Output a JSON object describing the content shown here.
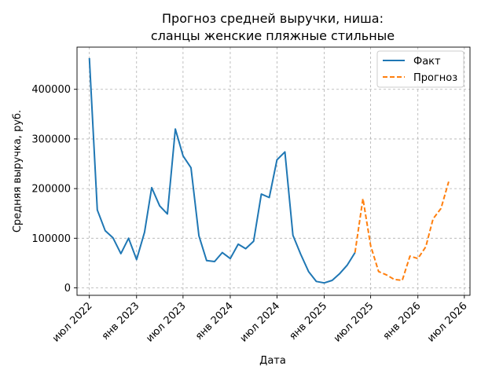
{
  "chart_data": {
    "type": "line",
    "title": "Прогноз средней выручки, ниша:",
    "subtitle": "сланцы женские пляжные стильные",
    "xlabel": "Дата",
    "ylabel": "Средняя выручка, руб.",
    "ylim": [
      -15000,
      485000
    ],
    "xlim": [
      "2022-05-14",
      "2026-07-23"
    ],
    "yticks": [
      0,
      100000,
      200000,
      300000,
      400000
    ],
    "ytick_labels": [
      "0",
      "100000",
      "200000",
      "300000",
      "400000"
    ],
    "xticks": [
      "2022-07-01",
      "2023-01-01",
      "2023-07-01",
      "2024-01-01",
      "2024-07-01",
      "2025-01-01",
      "2025-07-01",
      "2026-01-01",
      "2026-07-01"
    ],
    "xtick_labels": [
      "июл 2022",
      "янв 2023",
      "июл 2023",
      "янв 2024",
      "июл 2024",
      "янв 2025",
      "июл 2025",
      "янв 2026",
      "июл 2026"
    ],
    "grid": true,
    "legend_position": "top-right",
    "series": [
      {
        "name": "Факт",
        "color": "#1f77b4",
        "style": "solid",
        "x": [
          "2022-07-01",
          "2022-08-01",
          "2022-09-01",
          "2022-10-01",
          "2022-11-01",
          "2022-12-01",
          "2023-01-01",
          "2023-02-01",
          "2023-03-01",
          "2023-04-01",
          "2023-05-01",
          "2023-06-01",
          "2023-07-01",
          "2023-08-01",
          "2023-09-01",
          "2023-10-01",
          "2023-11-01",
          "2023-12-01",
          "2024-01-01",
          "2024-02-01",
          "2024-03-01",
          "2024-04-01",
          "2024-05-01",
          "2024-06-01",
          "2024-07-01",
          "2024-08-01",
          "2024-09-01",
          "2024-10-01",
          "2024-11-01",
          "2024-12-01",
          "2025-01-01",
          "2025-02-01",
          "2025-03-01",
          "2025-04-01",
          "2025-05-01"
        ],
        "y": [
          463000,
          157000,
          115000,
          101000,
          69000,
          100000,
          57000,
          112000,
          202000,
          165000,
          149000,
          320000,
          266000,
          242000,
          105000,
          55000,
          53000,
          71000,
          59000,
          88000,
          79000,
          94000,
          189000,
          182000,
          258000,
          274000,
          106000,
          68000,
          33000,
          13000,
          10000,
          15000,
          28000,
          46000,
          71000
        ]
      },
      {
        "name": "Прогноз",
        "color": "#ff7f0e",
        "style": "dashed",
        "x": [
          "2025-05-01",
          "2025-06-01",
          "2025-07-01",
          "2025-08-01",
          "2025-09-01",
          "2025-10-01",
          "2025-11-01",
          "2025-12-01",
          "2026-01-01",
          "2026-02-01",
          "2026-03-01",
          "2026-04-01",
          "2026-05-01"
        ],
        "y": [
          71000,
          180000,
          85000,
          33000,
          26000,
          17000,
          15000,
          64000,
          59000,
          83000,
          139000,
          160000,
          214000
        ]
      }
    ]
  }
}
